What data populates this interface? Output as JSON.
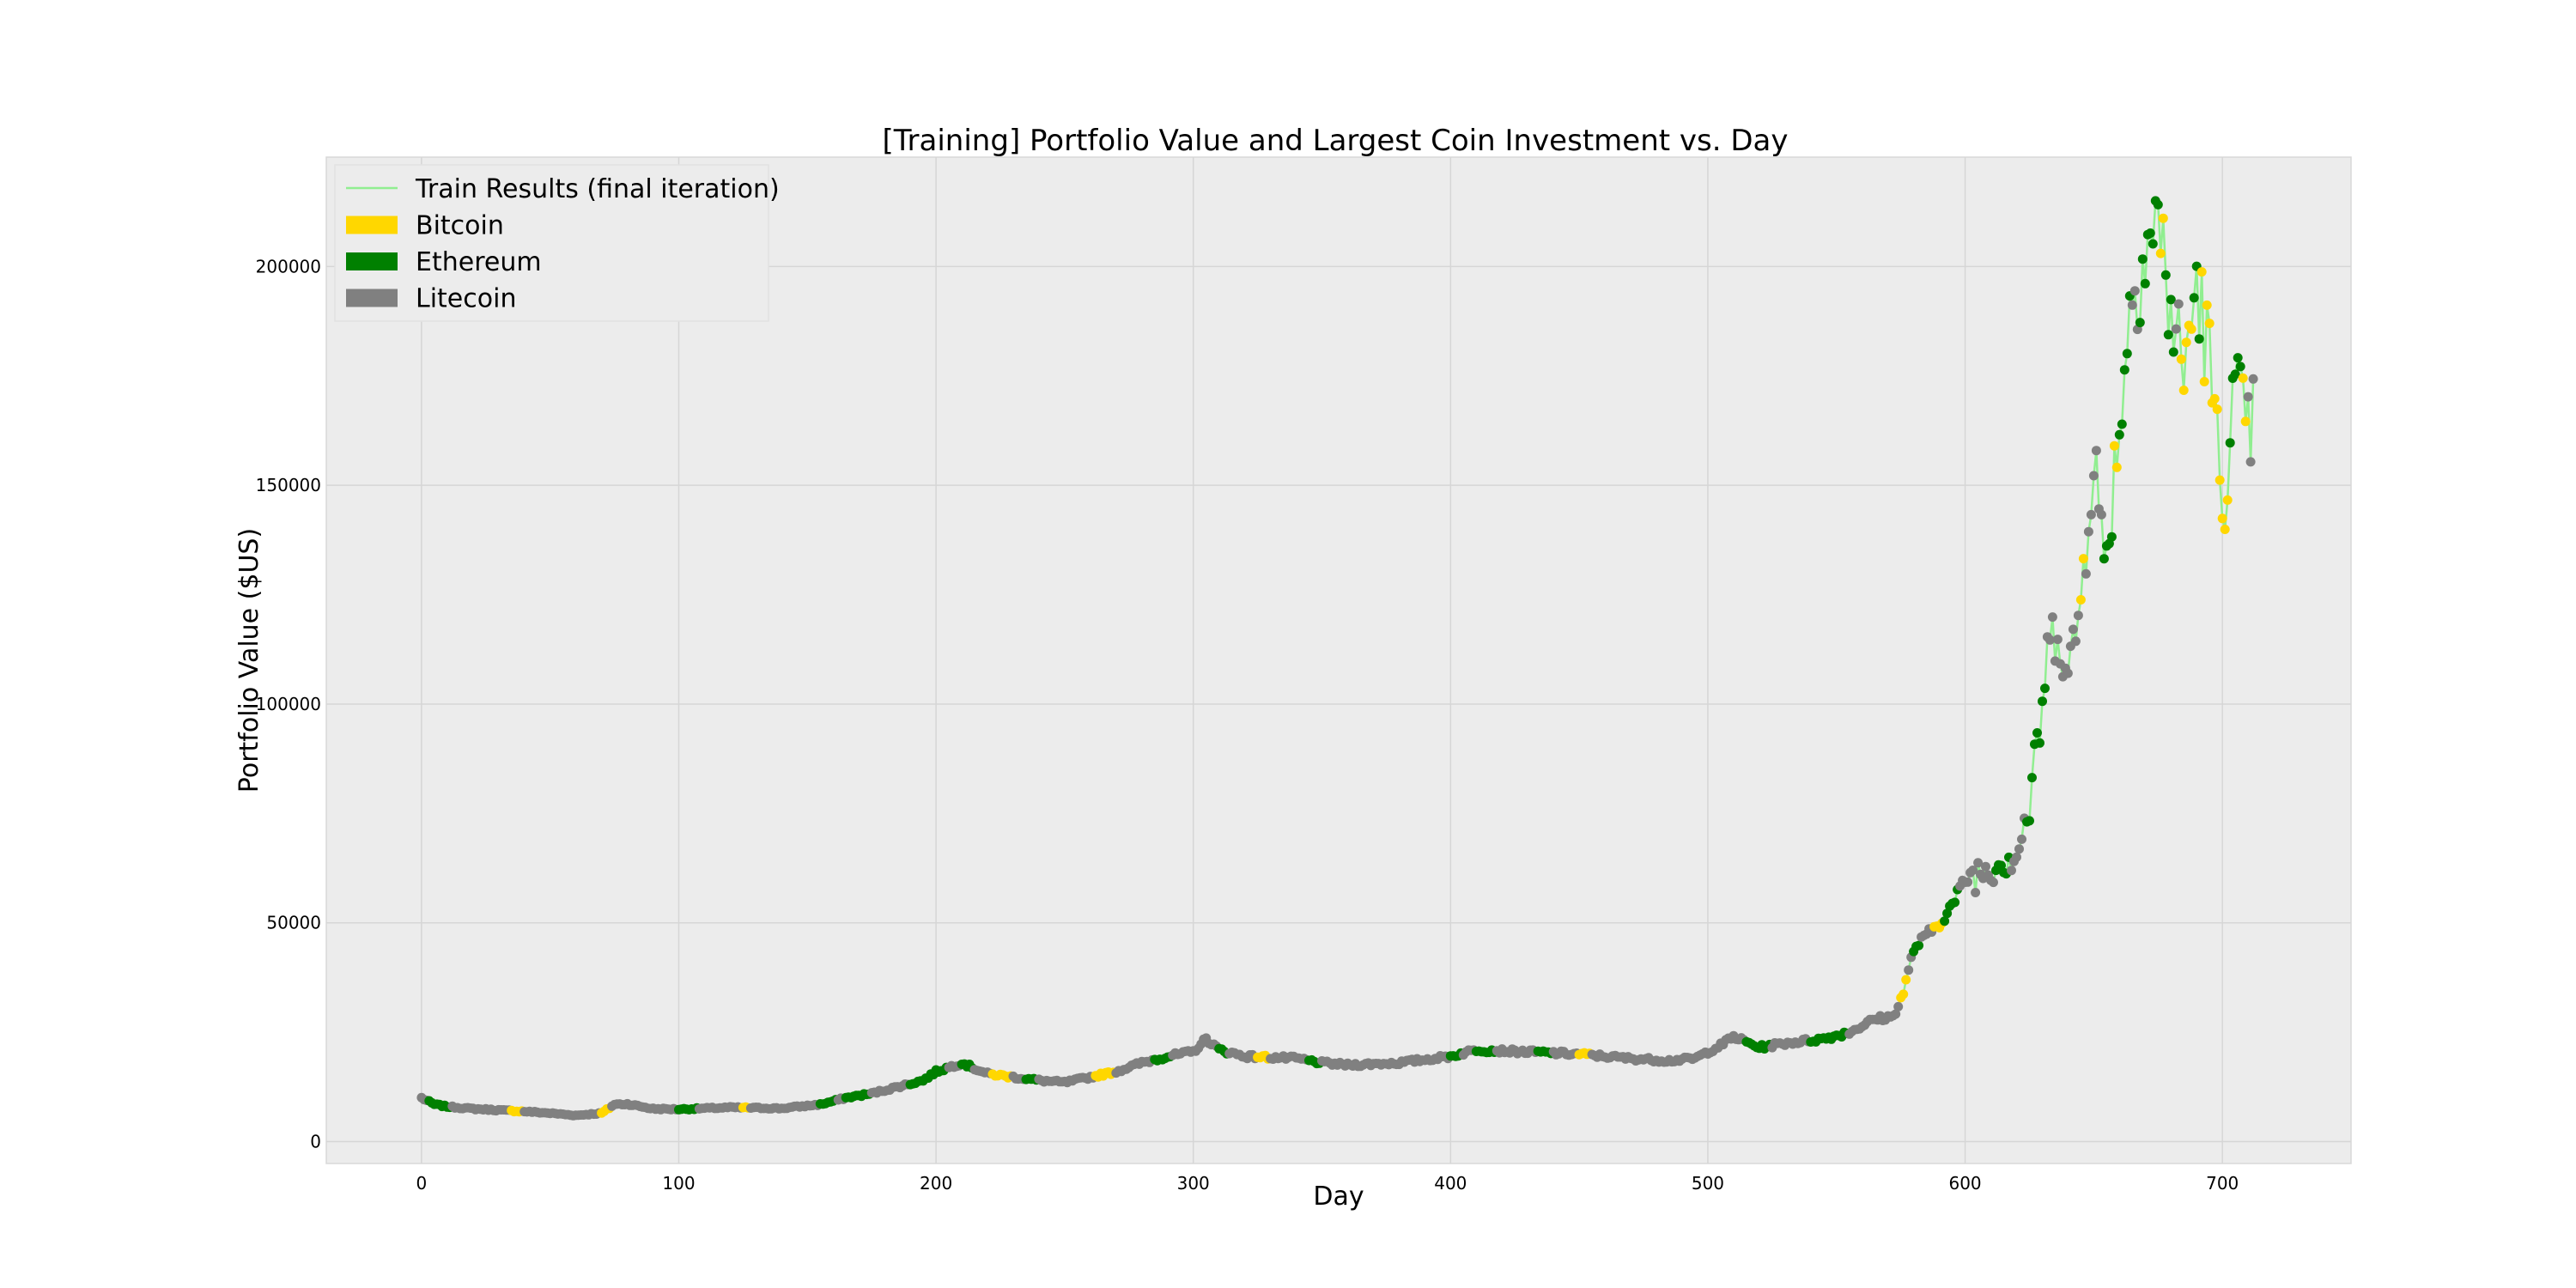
{
  "chart_data": {
    "type": "line",
    "title": "[Training] Portfolio Value and Largest Coin Investment vs. Day",
    "xlabel": "Day",
    "ylabel": "Portfolio Value ($US)",
    "xlim": [
      -37,
      750
    ],
    "ylim": [
      -5000,
      225000
    ],
    "x_ticks": [
      0,
      100,
      200,
      300,
      400,
      500,
      600,
      700
    ],
    "y_ticks": [
      0,
      50000,
      100000,
      150000,
      200000
    ],
    "grid": true,
    "legend_position": "top-left",
    "line": {
      "name": "Train Results (final iteration)",
      "color": "#90ee90"
    },
    "coin_colors": {
      "Bitcoin": "#ffd700",
      "Ethereum": "#008000",
      "Litecoin": "#808080"
    },
    "legend": [
      {
        "label": "Train Results (final iteration)",
        "kind": "line",
        "color": "#90ee90"
      },
      {
        "label": "Bitcoin",
        "kind": "patch",
        "color": "#ffd700"
      },
      {
        "label": "Ethereum",
        "kind": "patch",
        "color": "#008000"
      },
      {
        "label": "Litecoin",
        "kind": "patch",
        "color": "#808080"
      }
    ],
    "anchors": [
      [
        0,
        10000
      ],
      [
        5,
        8500
      ],
      [
        10,
        8000
      ],
      [
        20,
        7500
      ],
      [
        30,
        7200
      ],
      [
        40,
        6900
      ],
      [
        50,
        6500
      ],
      [
        60,
        6000
      ],
      [
        70,
        6500
      ],
      [
        75,
        8500
      ],
      [
        80,
        8600
      ],
      [
        90,
        7500
      ],
      [
        100,
        7400
      ],
      [
        120,
        7800
      ],
      [
        140,
        7600
      ],
      [
        155,
        8500
      ],
      [
        165,
        10000
      ],
      [
        175,
        11000
      ],
      [
        185,
        12500
      ],
      [
        195,
        14000
      ],
      [
        200,
        16000
      ],
      [
        210,
        18000
      ],
      [
        220,
        15500
      ],
      [
        240,
        14000
      ],
      [
        250,
        13500
      ],
      [
        270,
        16000
      ],
      [
        280,
        18000
      ],
      [
        290,
        19500
      ],
      [
        300,
        20500
      ],
      [
        305,
        23500
      ],
      [
        310,
        21000
      ],
      [
        320,
        19500
      ],
      [
        340,
        19000
      ],
      [
        350,
        18000
      ],
      [
        360,
        17500
      ],
      [
        380,
        18000
      ],
      [
        400,
        19500
      ],
      [
        410,
        21000
      ],
      [
        430,
        20500
      ],
      [
        450,
        20000
      ],
      [
        470,
        19000
      ],
      [
        485,
        18500
      ],
      [
        495,
        19000
      ],
      [
        505,
        22000
      ],
      [
        510,
        24000
      ],
      [
        520,
        21500
      ],
      [
        530,
        22500
      ],
      [
        545,
        23500
      ],
      [
        555,
        25000
      ],
      [
        565,
        28000
      ],
      [
        572,
        28500
      ],
      [
        576,
        34000
      ],
      [
        580,
        44000
      ],
      [
        590,
        50000
      ],
      [
        595,
        54000
      ],
      [
        600,
        60000
      ],
      [
        610,
        63000
      ],
      [
        620,
        66000
      ],
      [
        625,
        76000
      ],
      [
        628,
        90000
      ],
      [
        632,
        110000
      ],
      [
        636,
        120000
      ],
      [
        640,
        105000
      ],
      [
        645,
        124000
      ],
      [
        650,
        160000
      ],
      [
        654,
        130000
      ],
      [
        660,
        165000
      ],
      [
        665,
        195000
      ],
      [
        670,
        205000
      ],
      [
        675,
        210000
      ],
      [
        680,
        190000
      ],
      [
        685,
        175000
      ],
      [
        690,
        197000
      ],
      [
        695,
        178000
      ],
      [
        700,
        145000
      ],
      [
        705,
        172000
      ],
      [
        710,
        160000
      ],
      [
        712,
        164000
      ]
    ],
    "color_runs": [
      [
        0,
        "Litecoin"
      ],
      [
        3,
        "Ethereum"
      ],
      [
        12,
        "Litecoin"
      ],
      [
        35,
        "Bitcoin"
      ],
      [
        40,
        "Litecoin"
      ],
      [
        70,
        "Bitcoin"
      ],
      [
        74,
        "Litecoin"
      ],
      [
        100,
        "Ethereum"
      ],
      [
        108,
        "Litecoin"
      ],
      [
        125,
        "Bitcoin"
      ],
      [
        128,
        "Litecoin"
      ],
      [
        155,
        "Ethereum"
      ],
      [
        162,
        "Litecoin"
      ],
      [
        165,
        "Ethereum"
      ],
      [
        175,
        "Litecoin"
      ],
      [
        190,
        "Ethereum"
      ],
      [
        205,
        "Litecoin"
      ],
      [
        210,
        "Ethereum"
      ],
      [
        215,
        "Litecoin"
      ],
      [
        222,
        "Bitcoin"
      ],
      [
        230,
        "Litecoin"
      ],
      [
        235,
        "Ethereum"
      ],
      [
        240,
        "Litecoin"
      ],
      [
        262,
        "Bitcoin"
      ],
      [
        270,
        "Litecoin"
      ],
      [
        285,
        "Ethereum"
      ],
      [
        292,
        "Litecoin"
      ],
      [
        310,
        "Ethereum"
      ],
      [
        314,
        "Litecoin"
      ],
      [
        325,
        "Bitcoin"
      ],
      [
        330,
        "Litecoin"
      ],
      [
        345,
        "Ethereum"
      ],
      [
        350,
        "Litecoin"
      ],
      [
        400,
        "Ethereum"
      ],
      [
        405,
        "Litecoin"
      ],
      [
        410,
        "Ethereum"
      ],
      [
        418,
        "Litecoin"
      ],
      [
        434,
        "Ethereum"
      ],
      [
        440,
        "Litecoin"
      ],
      [
        450,
        "Bitcoin"
      ],
      [
        455,
        "Litecoin"
      ],
      [
        515,
        "Ethereum"
      ],
      [
        525,
        "Litecoin"
      ],
      [
        540,
        "Ethereum"
      ],
      [
        555,
        "Litecoin"
      ],
      [
        575,
        "Bitcoin"
      ],
      [
        578,
        "Litecoin"
      ],
      [
        580,
        "Ethereum"
      ],
      [
        583,
        "Litecoin"
      ],
      [
        588,
        "Bitcoin"
      ],
      [
        592,
        "Ethereum"
      ],
      [
        598,
        "Litecoin"
      ],
      [
        612,
        "Ethereum"
      ],
      [
        618,
        "Litecoin"
      ],
      [
        624,
        "Ethereum"
      ],
      [
        632,
        "Litecoin"
      ],
      [
        645,
        "Bitcoin"
      ],
      [
        647,
        "Litecoin"
      ],
      [
        654,
        "Ethereum"
      ],
      [
        658,
        "Bitcoin"
      ],
      [
        660,
        "Ethereum"
      ],
      [
        665,
        "Litecoin"
      ],
      [
        668,
        "Ethereum"
      ],
      [
        676,
        "Bitcoin"
      ],
      [
        678,
        "Ethereum"
      ],
      [
        682,
        "Litecoin"
      ],
      [
        684,
        "Bitcoin"
      ],
      [
        689,
        "Ethereum"
      ],
      [
        692,
        "Bitcoin"
      ],
      [
        696,
        "Bitcoin"
      ],
      [
        703,
        "Ethereum"
      ],
      [
        708,
        "Bitcoin"
      ],
      [
        710,
        "Litecoin"
      ]
    ]
  }
}
